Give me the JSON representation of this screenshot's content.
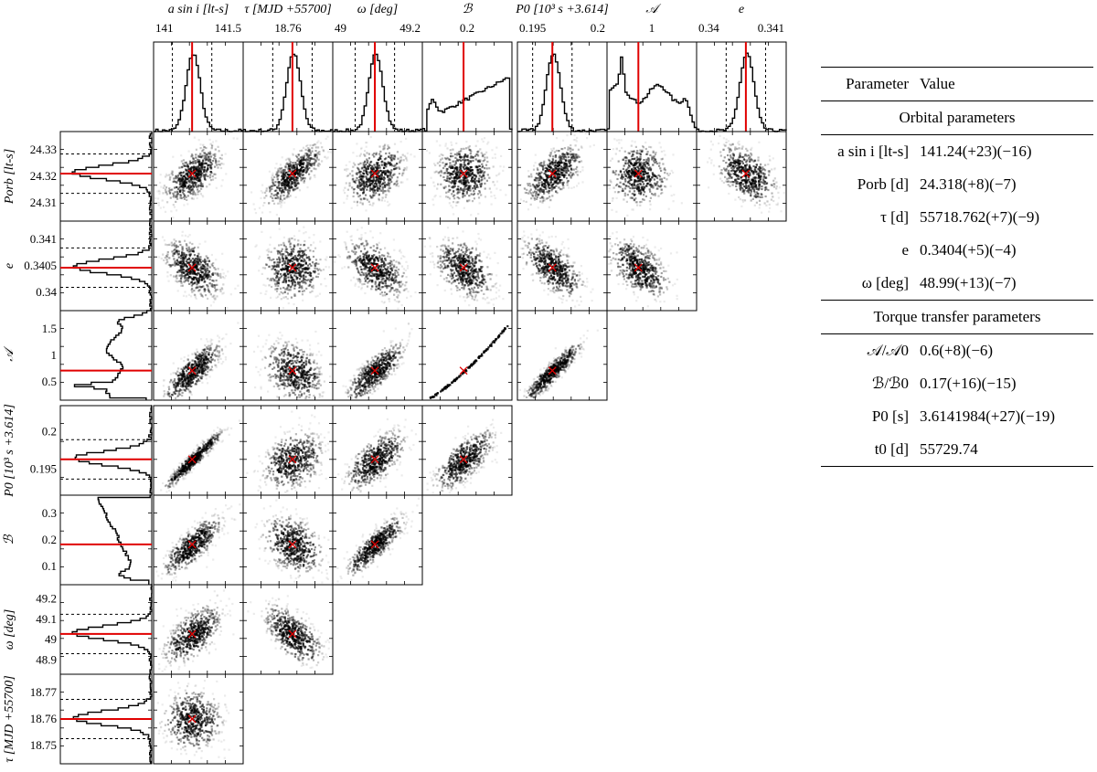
{
  "chart_data": {
    "type": "corner",
    "columns": [
      {
        "key": "asini",
        "label": "a sin i [lt-s]",
        "tick_labels": [
          "141",
          "141.5"
        ],
        "best": 141.24
      },
      {
        "key": "tau",
        "label": "τ [MJD +55700]",
        "tick_labels": [
          "18.76"
        ],
        "best": 18.762
      },
      {
        "key": "omega",
        "label": "ω [deg]",
        "tick_labels": [
          "49",
          "49.2"
        ],
        "best": 48.99
      },
      {
        "key": "B",
        "label": "ℬ",
        "tick_labels": [
          "0.2"
        ],
        "best": 0.17
      },
      {
        "key": "P0",
        "label": "P0 [10³ s +3.614]",
        "tick_labels": [
          "0.195",
          "0.2"
        ],
        "best": 0.1984
      },
      {
        "key": "A",
        "label": "𝒜",
        "tick_labels": [
          "1"
        ],
        "best": 0.6
      },
      {
        "key": "e",
        "label": "e",
        "tick_labels": [
          "0.34",
          "0.341"
        ],
        "best": 0.3404
      }
    ],
    "rows": [
      {
        "key": "Porb",
        "label": "Porb [lt-s]",
        "tick_labels": [
          "24.33",
          "24.32",
          "24.31"
        ],
        "best": 24.318
      },
      {
        "key": "e",
        "label": "e",
        "tick_labels": [
          "0.341",
          "0.3405",
          "0.34"
        ],
        "best": 0.3404
      },
      {
        "key": "A",
        "label": "𝒜",
        "tick_labels": [
          "1.5",
          "1",
          "0.5"
        ],
        "best": 0.6
      },
      {
        "key": "P0",
        "label": "P0 [10³ s +3.614]",
        "tick_labels": [
          "0.2",
          "0.195"
        ],
        "best": 0.1984
      },
      {
        "key": "B",
        "label": "ℬ",
        "tick_labels": [
          "0.3",
          "0.2",
          "0.1"
        ],
        "best": 0.17
      },
      {
        "key": "omega",
        "label": "ω [deg]",
        "tick_labels": [
          "49.2",
          "49.1",
          "49",
          "48.9"
        ],
        "best": 48.99
      },
      {
        "key": "tau",
        "label": "τ [MJD +55700]",
        "tick_labels": [
          "18.77",
          "18.76",
          "18.75"
        ],
        "best": 18.762
      }
    ],
    "correlations": [
      [
        0.6,
        0.75,
        0.35,
        0.0,
        0.6,
        0.0,
        -0.45
      ],
      [
        -0.5,
        0.0,
        -0.5,
        -0.4,
        -0.6,
        -0.5
      ],
      [
        0.8,
        -0.3,
        0.8,
        0.995,
        0.92
      ],
      [
        0.96,
        0.3,
        0.65,
        0.7
      ],
      [
        0.8,
        -0.3,
        0.85
      ],
      [
        0.6,
        -0.6
      ],
      [
        0.0
      ]
    ],
    "best_fit_color": "#e00000",
    "histogram_color": "#000000"
  },
  "table": {
    "header": {
      "parameter": "Parameter",
      "value": "Value"
    },
    "sections": [
      {
        "title": "Orbital parameters",
        "rows": [
          {
            "name": "a sin i [lt-s]",
            "value": "141.24(+23)(−16)"
          },
          {
            "name": "Porb [d]",
            "value": "24.318(+8)(−7)"
          },
          {
            "name": "τ [d]",
            "value": "55718.762(+7)(−9)"
          },
          {
            "name": "e",
            "value": "0.3404(+5)(−4)"
          },
          {
            "name": "ω [deg]",
            "value": "48.99(+13)(−7)"
          }
        ]
      },
      {
        "title": "Torque transfer parameters",
        "rows": [
          {
            "name": "𝒜/𝒜0",
            "value": "0.6(+8)(−6)"
          },
          {
            "name": "ℬ/ℬ0",
            "value": "0.17(+16)(−15)"
          },
          {
            "name": "P0 [s]",
            "value": "3.6141984(+27)(−19)"
          },
          {
            "name": "t0 [d]",
            "value": "55729.74"
          }
        ]
      }
    ]
  }
}
